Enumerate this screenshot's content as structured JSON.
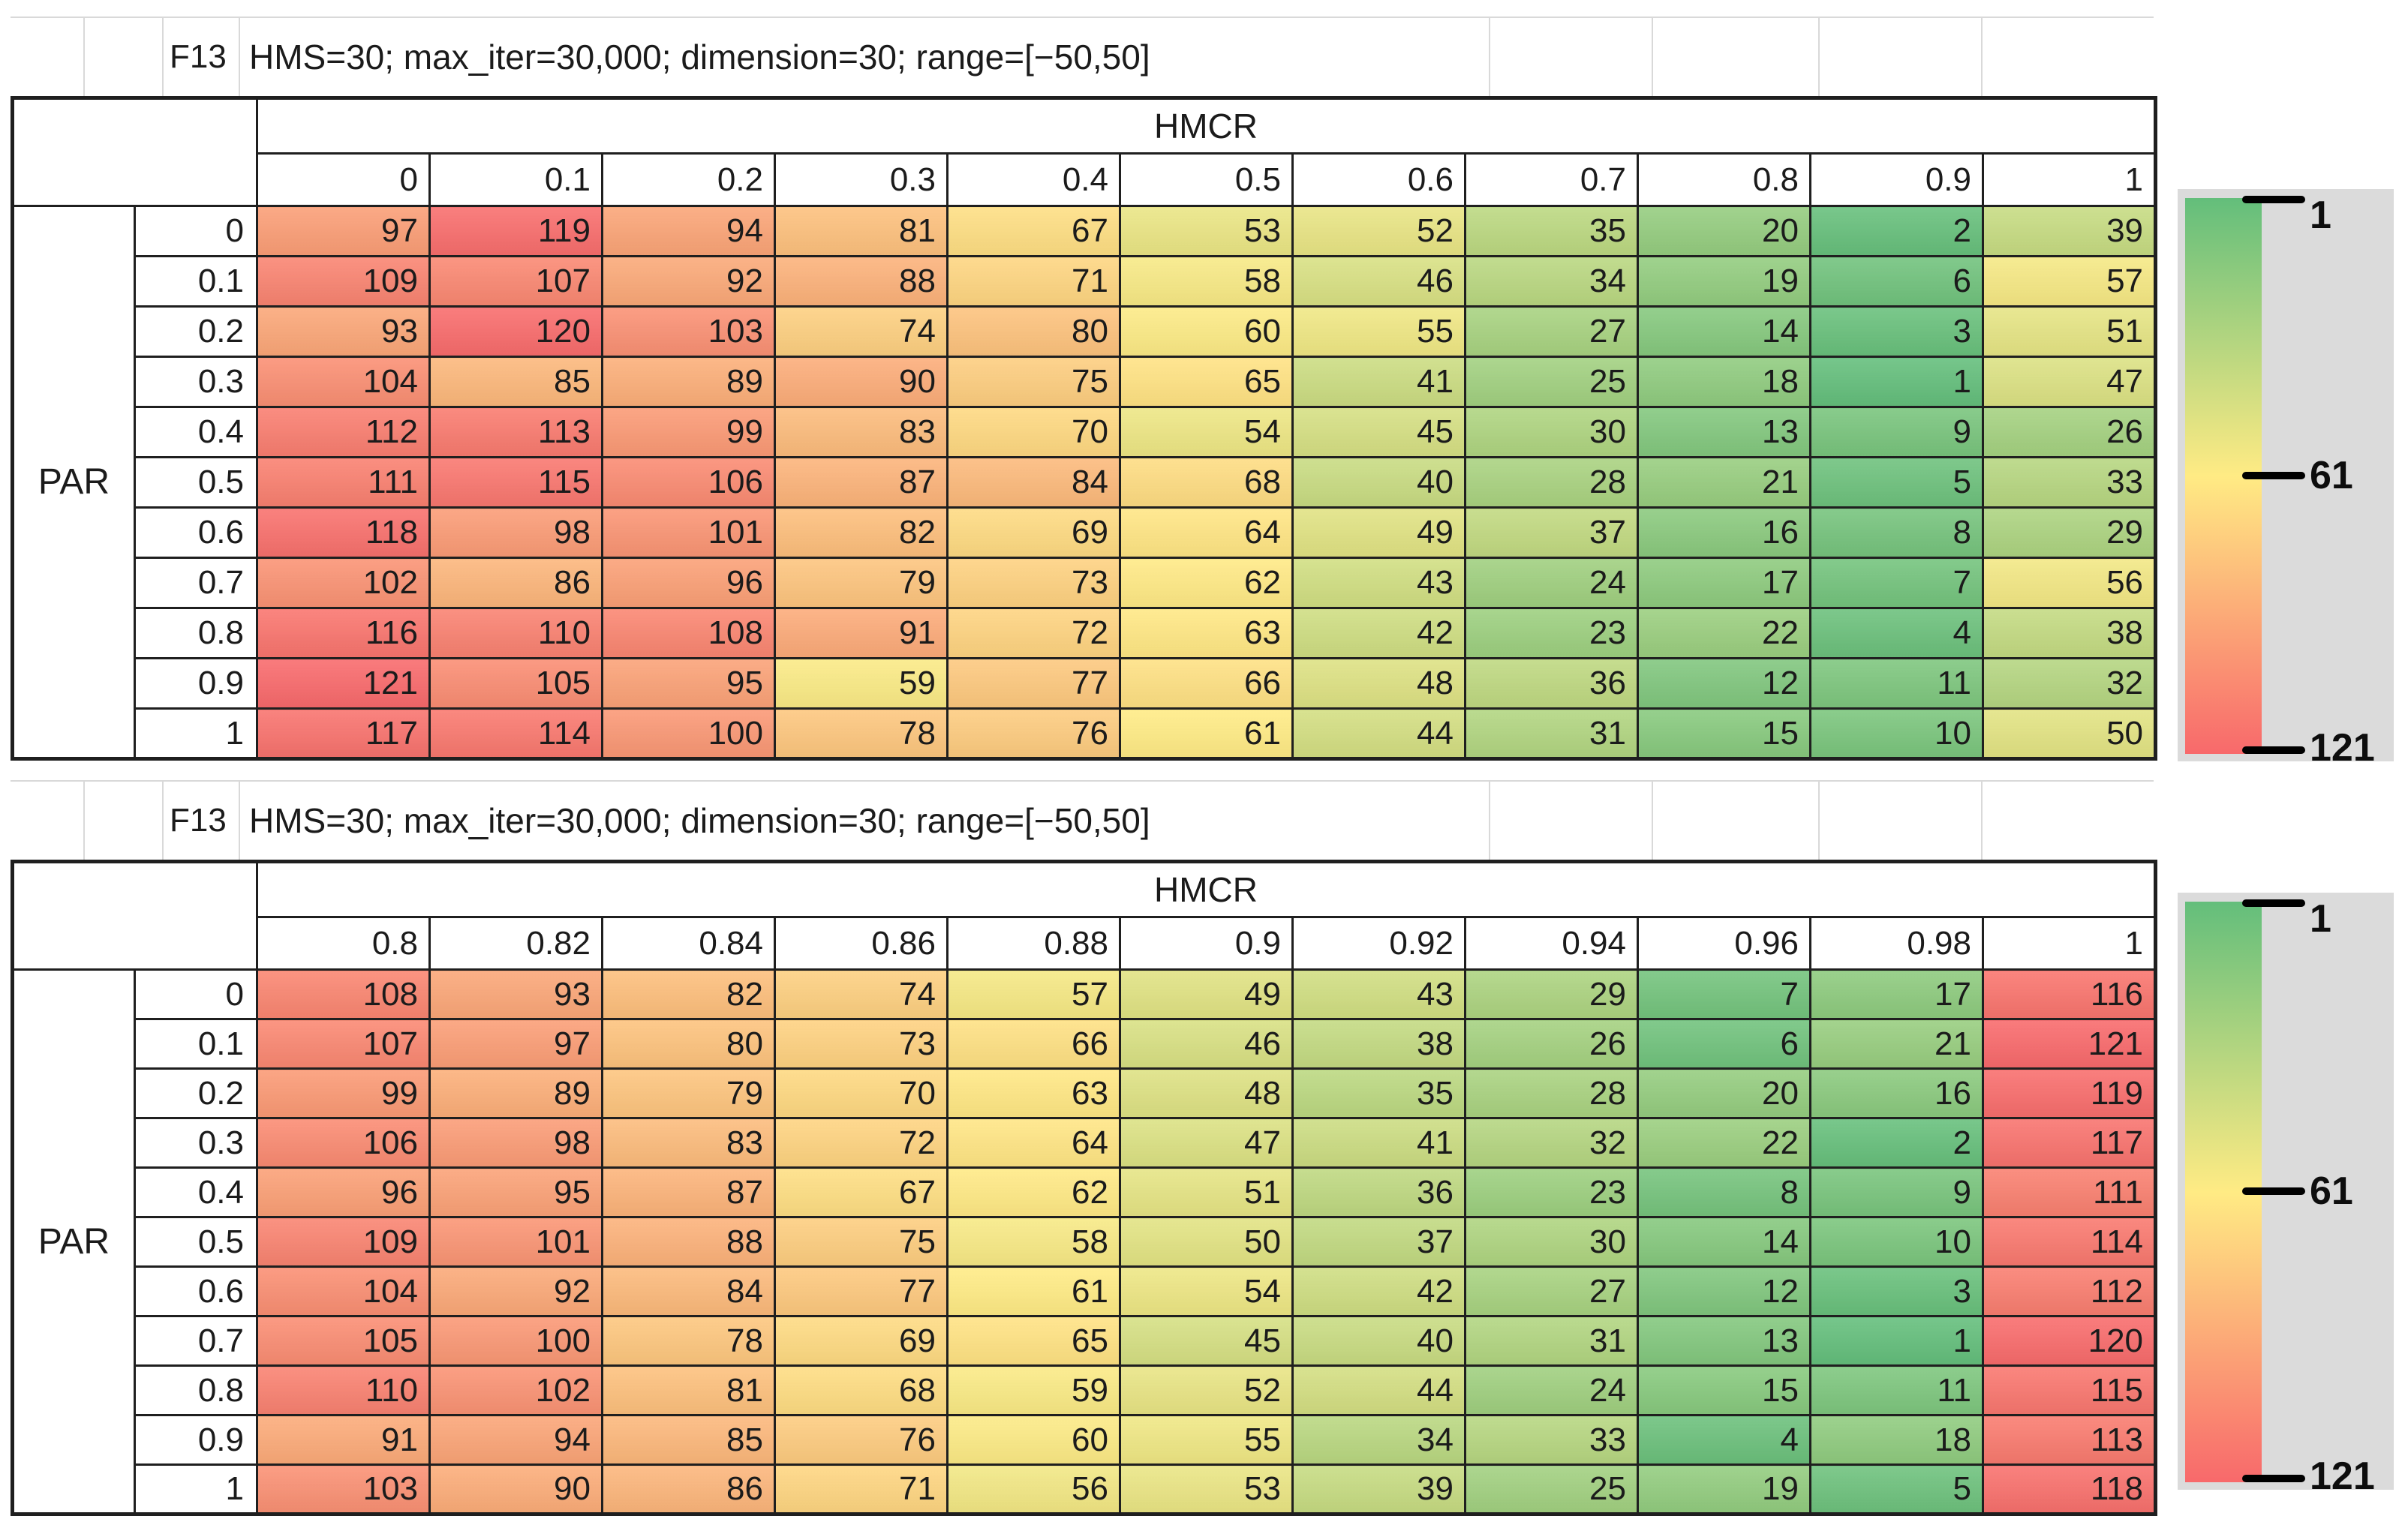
{
  "color_scale": {
    "min_value": 1,
    "mid_value": 61,
    "max_value": 121,
    "min_color": "#63BE7B",
    "mid_color": "#FFEB84",
    "max_color": "#F8696B"
  },
  "legend": {
    "panel_color": "#DBDBDB",
    "ticks": [
      "1",
      "61",
      "121"
    ]
  },
  "chart_data": [
    {
      "type": "heatmap",
      "title": "F13",
      "caption": "HMS=30; max_iter=30,000; dimension=30; range=[−50,50]",
      "col_group_label": "HMCR",
      "row_group_label": "PAR",
      "columns": [
        "0",
        "0.1",
        "0.2",
        "0.3",
        "0.4",
        "0.5",
        "0.6",
        "0.7",
        "0.8",
        "0.9",
        "1"
      ],
      "rows": [
        "0",
        "0.1",
        "0.2",
        "0.3",
        "0.4",
        "0.5",
        "0.6",
        "0.7",
        "0.8",
        "0.9",
        "1"
      ],
      "values": [
        [
          97,
          119,
          94,
          81,
          67,
          53,
          52,
          35,
          20,
          2,
          39
        ],
        [
          109,
          107,
          92,
          88,
          71,
          58,
          46,
          34,
          19,
          6,
          57
        ],
        [
          93,
          120,
          103,
          74,
          80,
          60,
          55,
          27,
          14,
          3,
          51
        ],
        [
          104,
          85,
          89,
          90,
          75,
          65,
          41,
          25,
          18,
          1,
          47
        ],
        [
          112,
          113,
          99,
          83,
          70,
          54,
          45,
          30,
          13,
          9,
          26
        ],
        [
          111,
          115,
          106,
          87,
          84,
          68,
          40,
          28,
          21,
          5,
          33
        ],
        [
          118,
          98,
          101,
          82,
          69,
          64,
          49,
          37,
          16,
          8,
          29
        ],
        [
          102,
          86,
          96,
          79,
          73,
          62,
          43,
          24,
          17,
          7,
          56
        ],
        [
          116,
          110,
          108,
          91,
          72,
          63,
          42,
          23,
          22,
          4,
          38
        ],
        [
          121,
          105,
          95,
          59,
          77,
          66,
          48,
          36,
          12,
          11,
          32
        ],
        [
          117,
          114,
          100,
          78,
          76,
          61,
          44,
          31,
          15,
          10,
          50
        ]
      ],
      "colorbar_ticks": [
        "1",
        "61",
        "121"
      ]
    },
    {
      "type": "heatmap",
      "title": "F13",
      "caption": "HMS=30; max_iter=30,000; dimension=30; range=[−50,50]",
      "col_group_label": "HMCR",
      "row_group_label": "PAR",
      "columns": [
        "0.8",
        "0.82",
        "0.84",
        "0.86",
        "0.88",
        "0.9",
        "0.92",
        "0.94",
        "0.96",
        "0.98",
        "1"
      ],
      "rows": [
        "0",
        "0.1",
        "0.2",
        "0.3",
        "0.4",
        "0.5",
        "0.6",
        "0.7",
        "0.8",
        "0.9",
        "1"
      ],
      "values": [
        [
          108,
          93,
          82,
          74,
          57,
          49,
          43,
          29,
          7,
          17,
          116
        ],
        [
          107,
          97,
          80,
          73,
          66,
          46,
          38,
          26,
          6,
          21,
          121
        ],
        [
          99,
          89,
          79,
          70,
          63,
          48,
          35,
          28,
          20,
          16,
          119
        ],
        [
          106,
          98,
          83,
          72,
          64,
          47,
          41,
          32,
          22,
          2,
          117
        ],
        [
          96,
          95,
          87,
          67,
          62,
          51,
          36,
          23,
          8,
          9,
          111
        ],
        [
          109,
          101,
          88,
          75,
          58,
          50,
          37,
          30,
          14,
          10,
          114
        ],
        [
          104,
          92,
          84,
          77,
          61,
          54,
          42,
          27,
          12,
          3,
          112
        ],
        [
          105,
          100,
          78,
          69,
          65,
          45,
          40,
          31,
          13,
          1,
          120
        ],
        [
          110,
          102,
          81,
          68,
          59,
          52,
          44,
          24,
          15,
          11,
          115
        ],
        [
          91,
          94,
          85,
          76,
          60,
          55,
          34,
          33,
          4,
          18,
          113
        ],
        [
          103,
          90,
          86,
          71,
          56,
          53,
          39,
          25,
          19,
          5,
          118
        ]
      ],
      "colorbar_ticks": [
        "1",
        "61",
        "121"
      ]
    }
  ]
}
